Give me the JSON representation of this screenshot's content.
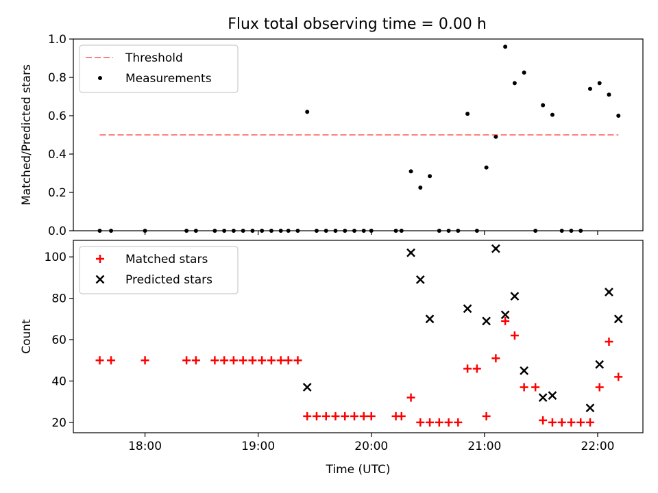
{
  "figure": {
    "title": "Flux total observing time = 0.00 h"
  },
  "chart_data": [
    {
      "type": "scatter",
      "title": "Flux total observing time = 0.00 h",
      "xlabel": "",
      "ylabel": "Matched/Predicted stars",
      "xlim": [
        "17:22",
        "22:24"
      ],
      "ylim": [
        0,
        1.0
      ],
      "yticks": [
        0.0,
        0.2,
        0.4,
        0.6,
        0.8,
        1.0
      ],
      "ytick_labels": [
        "0.0",
        "0.2",
        "0.4",
        "0.6",
        "0.8",
        "1.0"
      ],
      "grid": false,
      "legend": {
        "placement": "upper-left",
        "entries": [
          "Threshold",
          "Measurements"
        ]
      },
      "threshold": {
        "name": "Threshold",
        "value": 0.5,
        "x_start": "17:36",
        "x_end": "22:11",
        "color": "#ff7f7f",
        "style": "dashed"
      },
      "series": [
        {
          "name": "Measurements",
          "color": "#000000",
          "marker": "dot",
          "points": [
            [
              "17:36",
              0.0
            ],
            [
              "17:42",
              0.0
            ],
            [
              "18:00",
              0.0
            ],
            [
              "18:22",
              0.0
            ],
            [
              "18:27",
              0.0
            ],
            [
              "18:37",
              0.0
            ],
            [
              "18:42",
              0.0
            ],
            [
              "18:47",
              0.0
            ],
            [
              "18:52",
              0.0
            ],
            [
              "18:57",
              0.0
            ],
            [
              "19:02",
              0.0
            ],
            [
              "19:07",
              0.0
            ],
            [
              "19:12",
              0.0
            ],
            [
              "19:16",
              0.0
            ],
            [
              "19:21",
              0.0
            ],
            [
              "19:26",
              0.62
            ],
            [
              "19:31",
              0.0
            ],
            [
              "19:36",
              0.0
            ],
            [
              "19:41",
              0.0
            ],
            [
              "19:46",
              0.0
            ],
            [
              "19:51",
              0.0
            ],
            [
              "19:56",
              0.0
            ],
            [
              "20:00",
              0.0
            ],
            [
              "20:13",
              0.0
            ],
            [
              "20:16",
              0.0
            ],
            [
              "20:21",
              0.31
            ],
            [
              "20:26",
              0.225
            ],
            [
              "20:31",
              0.285
            ],
            [
              "20:36",
              0.0
            ],
            [
              "20:41",
              0.0
            ],
            [
              "20:46",
              0.0
            ],
            [
              "20:51",
              0.61
            ],
            [
              "20:56",
              0.0
            ],
            [
              "21:01",
              0.33
            ],
            [
              "21:06",
              0.49
            ],
            [
              "21:11",
              0.96
            ],
            [
              "21:16",
              0.77
            ],
            [
              "21:21",
              0.825
            ],
            [
              "21:27",
              0.0
            ],
            [
              "21:31",
              0.655
            ],
            [
              "21:36",
              0.605
            ],
            [
              "21:41",
              0.0
            ],
            [
              "21:46",
              0.0
            ],
            [
              "21:51",
              0.0
            ],
            [
              "21:56",
              0.74
            ],
            [
              "22:01",
              0.77
            ],
            [
              "22:06",
              0.71
            ],
            [
              "22:11",
              0.6
            ]
          ]
        }
      ]
    },
    {
      "type": "scatter",
      "title": "",
      "xlabel": "Time (UTC)",
      "ylabel": "Count",
      "xlim": [
        "17:22",
        "22:24"
      ],
      "ylim": [
        15,
        108
      ],
      "xticks": [
        "18:00",
        "19:00",
        "20:00",
        "21:00",
        "22:00"
      ],
      "xtick_labels": [
        "18:00",
        "19:00",
        "20:00",
        "21:00",
        "22:00"
      ],
      "yticks": [
        20,
        40,
        60,
        80,
        100
      ],
      "ytick_labels": [
        "20",
        "40",
        "60",
        "80",
        "100"
      ],
      "grid": false,
      "legend": {
        "placement": "upper-left",
        "entries": [
          "Matched stars",
          "Predicted stars"
        ]
      },
      "series": [
        {
          "name": "Matched stars",
          "color": "#ff0000",
          "marker": "plus",
          "points": [
            [
              "17:36",
              50
            ],
            [
              "17:42",
              50
            ],
            [
              "18:00",
              50
            ],
            [
              "18:22",
              50
            ],
            [
              "18:27",
              50
            ],
            [
              "18:37",
              50
            ],
            [
              "18:42",
              50
            ],
            [
              "18:47",
              50
            ],
            [
              "18:52",
              50
            ],
            [
              "18:57",
              50
            ],
            [
              "19:02",
              50
            ],
            [
              "19:07",
              50
            ],
            [
              "19:12",
              50
            ],
            [
              "19:16",
              50
            ],
            [
              "19:21",
              50
            ],
            [
              "19:26",
              23
            ],
            [
              "19:31",
              23
            ],
            [
              "19:36",
              23
            ],
            [
              "19:41",
              23
            ],
            [
              "19:46",
              23
            ],
            [
              "19:51",
              23
            ],
            [
              "19:56",
              23
            ],
            [
              "20:00",
              23
            ],
            [
              "20:13",
              23
            ],
            [
              "20:16",
              23
            ],
            [
              "20:21",
              32
            ],
            [
              "20:26",
              20
            ],
            [
              "20:31",
              20
            ],
            [
              "20:36",
              20
            ],
            [
              "20:41",
              20
            ],
            [
              "20:46",
              20
            ],
            [
              "20:51",
              46
            ],
            [
              "20:56",
              46
            ],
            [
              "21:01",
              23
            ],
            [
              "21:06",
              51
            ],
            [
              "21:11",
              69
            ],
            [
              "21:16",
              62
            ],
            [
              "21:21",
              37
            ],
            [
              "21:27",
              37
            ],
            [
              "21:31",
              21
            ],
            [
              "21:36",
              20
            ],
            [
              "21:41",
              20
            ],
            [
              "21:46",
              20
            ],
            [
              "21:51",
              20
            ],
            [
              "21:56",
              20
            ],
            [
              "22:01",
              37
            ],
            [
              "22:06",
              59
            ],
            [
              "22:11",
              42
            ]
          ]
        },
        {
          "name": "Predicted stars",
          "color": "#000000",
          "marker": "x",
          "points": [
            [
              "19:26",
              37
            ],
            [
              "20:21",
              102
            ],
            [
              "20:26",
              89
            ],
            [
              "20:31",
              70
            ],
            [
              "20:51",
              75
            ],
            [
              "21:01",
              69
            ],
            [
              "21:06",
              104
            ],
            [
              "21:11",
              72
            ],
            [
              "21:16",
              81
            ],
            [
              "21:21",
              45
            ],
            [
              "21:31",
              32
            ],
            [
              "21:36",
              33
            ],
            [
              "21:56",
              27
            ],
            [
              "22:01",
              48
            ],
            [
              "22:06",
              83
            ],
            [
              "22:11",
              70
            ]
          ]
        }
      ]
    }
  ]
}
